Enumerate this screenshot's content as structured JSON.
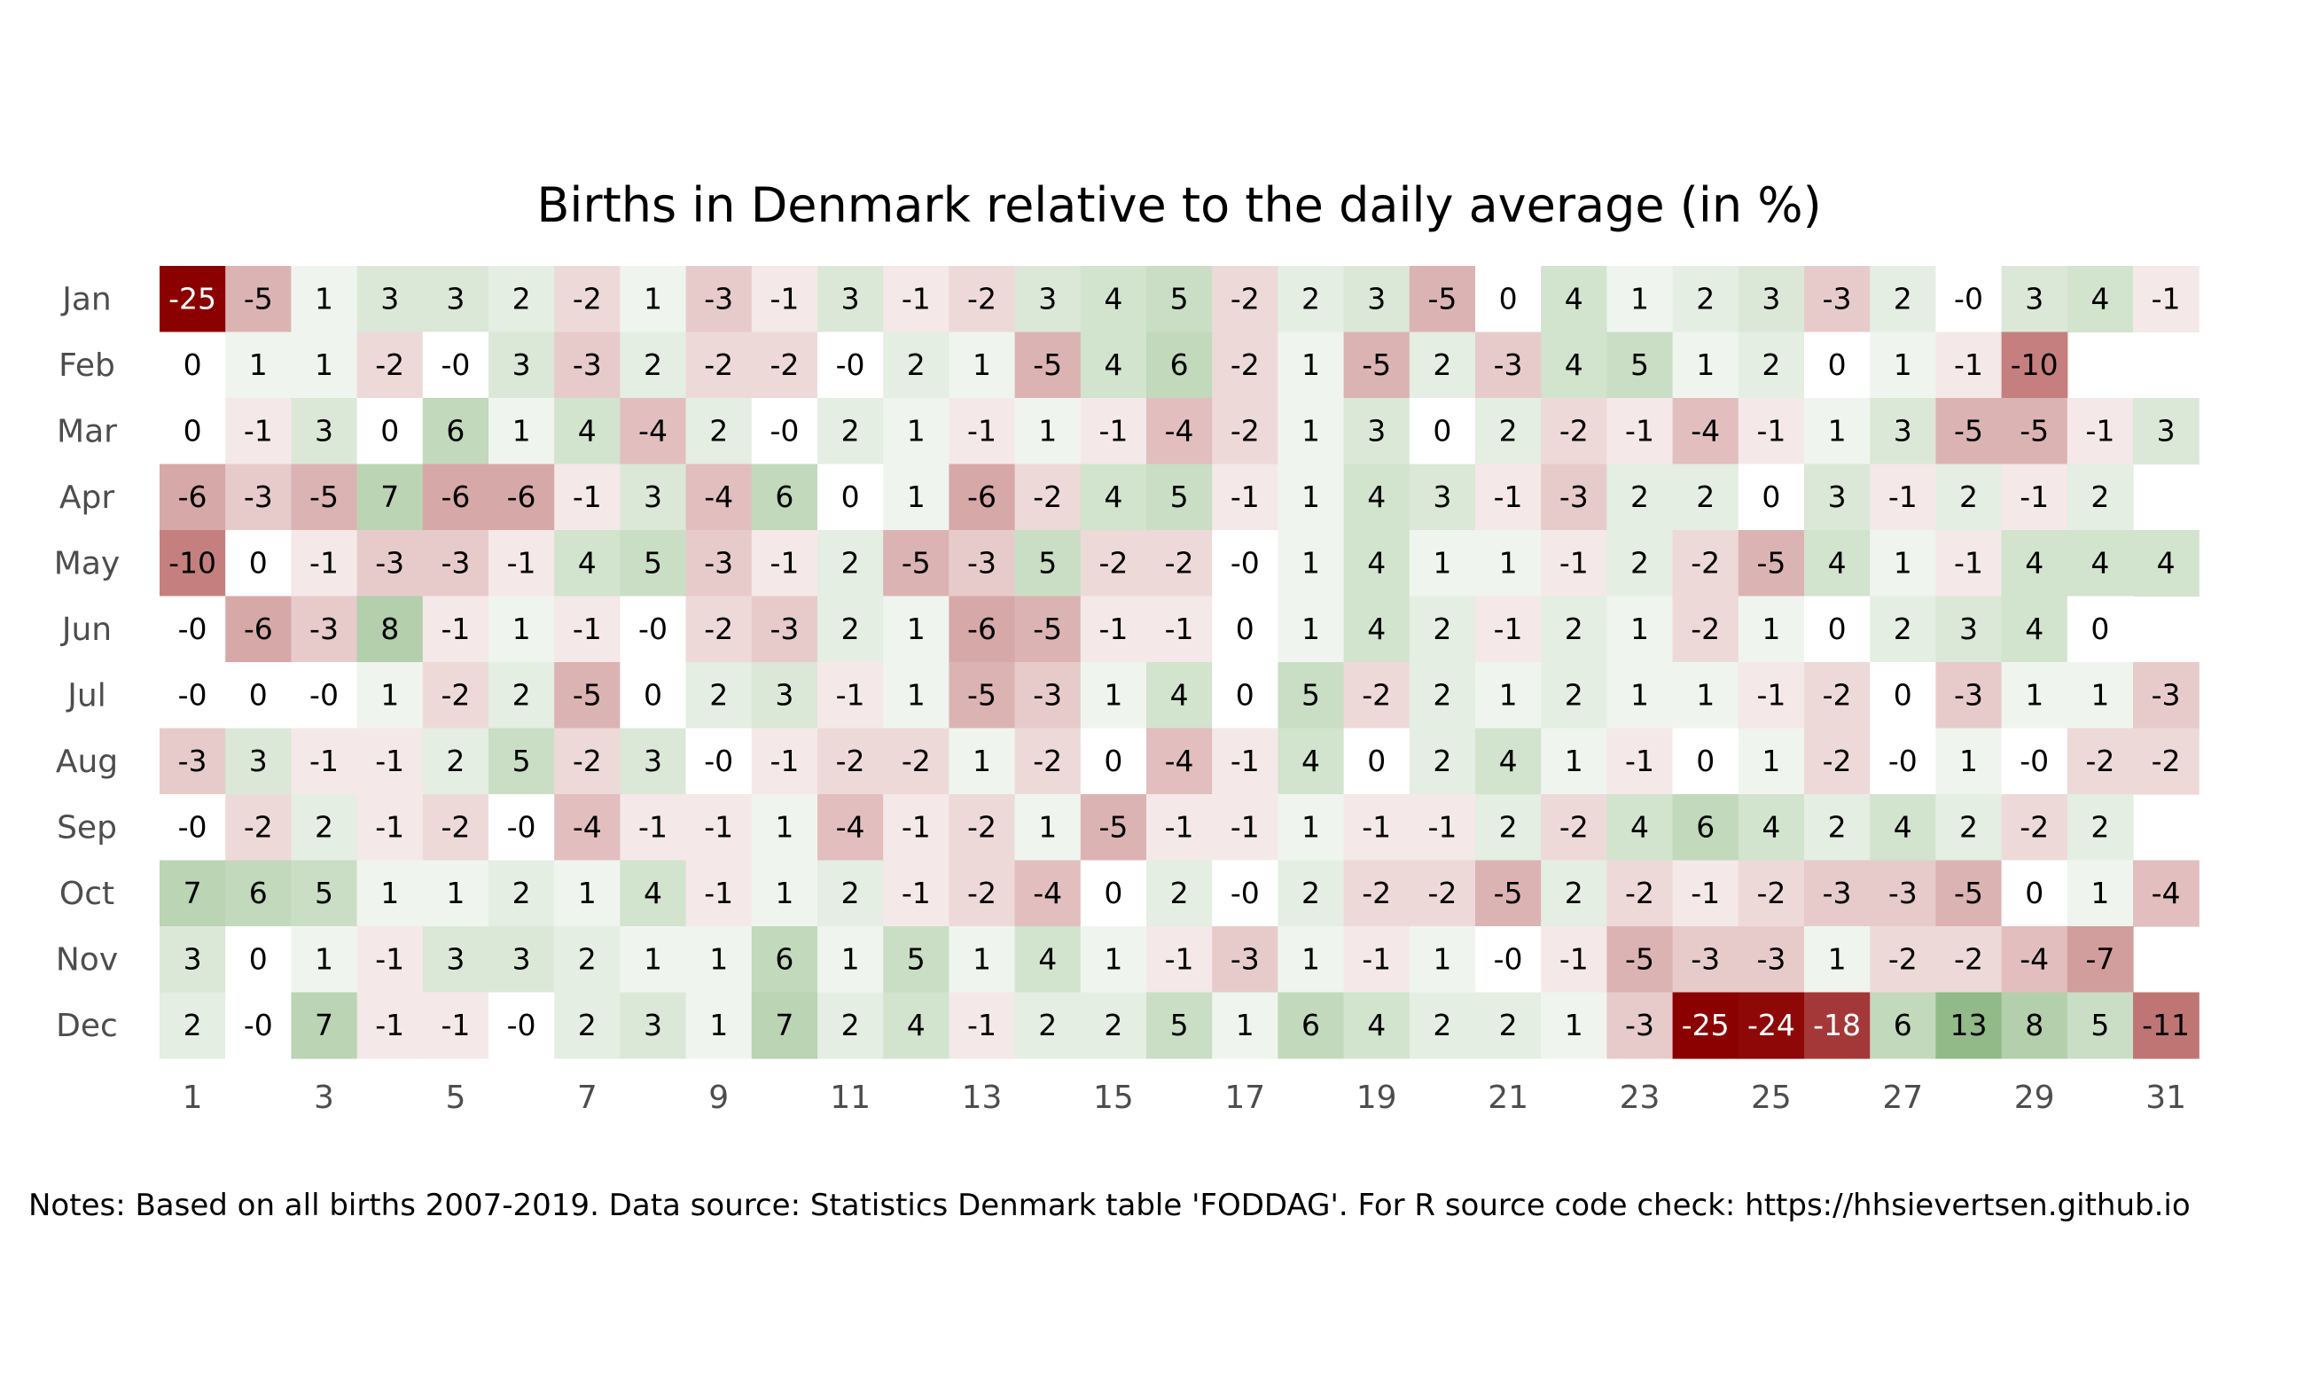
{
  "chart_data": {
    "type": "heatmap",
    "title": "Births in Denmark relative to the daily average (in %)",
    "rows": [
      "Jan",
      "Feb",
      "Mar",
      "Apr",
      "May",
      "Jun",
      "Jul",
      "Aug",
      "Sep",
      "Oct",
      "Nov",
      "Dec"
    ],
    "columns": [
      1,
      2,
      3,
      4,
      5,
      6,
      7,
      8,
      9,
      10,
      11,
      12,
      13,
      14,
      15,
      16,
      17,
      18,
      19,
      20,
      21,
      22,
      23,
      24,
      25,
      26,
      27,
      28,
      29,
      30,
      31
    ],
    "x_tick_labels": [
      "1",
      "3",
      "5",
      "7",
      "9",
      "11",
      "13",
      "15",
      "17",
      "19",
      "21",
      "23",
      "25",
      "27",
      "29",
      "31"
    ],
    "values": [
      [
        "-25",
        "-5",
        "1",
        "3",
        "3",
        "2",
        "-2",
        "1",
        "-3",
        "-1",
        "3",
        "-1",
        "-2",
        "3",
        "4",
        "5",
        "-2",
        "2",
        "3",
        "-5",
        "0",
        "4",
        "1",
        "2",
        "3",
        "-3",
        "2",
        "-0",
        "3",
        "4",
        "-1"
      ],
      [
        "0",
        "1",
        "1",
        "-2",
        "-0",
        "3",
        "-3",
        "2",
        "-2",
        "-2",
        "-0",
        "2",
        "1",
        "-5",
        "4",
        "6",
        "-2",
        "1",
        "-5",
        "2",
        "-3",
        "4",
        "5",
        "1",
        "2",
        "0",
        "1",
        "-1",
        "-10"
      ],
      [
        "0",
        "-1",
        "3",
        "0",
        "6",
        "1",
        "4",
        "-4",
        "2",
        "-0",
        "2",
        "1",
        "-1",
        "1",
        "-1",
        "-4",
        "-2",
        "1",
        "3",
        "0",
        "2",
        "-2",
        "-1",
        "-4",
        "-1",
        "1",
        "3",
        "-5",
        "-5",
        "-1",
        "3"
      ],
      [
        "-6",
        "-3",
        "-5",
        "7",
        "-6",
        "-6",
        "-1",
        "3",
        "-4",
        "6",
        "0",
        "1",
        "-6",
        "-2",
        "4",
        "5",
        "-1",
        "1",
        "4",
        "3",
        "-1",
        "-3",
        "2",
        "2",
        "0",
        "3",
        "-1",
        "2",
        "-1",
        "2"
      ],
      [
        "-10",
        "0",
        "-1",
        "-3",
        "-3",
        "-1",
        "4",
        "5",
        "-3",
        "-1",
        "2",
        "-5",
        "-3",
        "5",
        "-2",
        "-2",
        "-0",
        "1",
        "4",
        "1",
        "1",
        "-1",
        "2",
        "-2",
        "-5",
        "4",
        "1",
        "-1",
        "4",
        "4",
        "4"
      ],
      [
        "-0",
        "-6",
        "-3",
        "8",
        "-1",
        "1",
        "-1",
        "-0",
        "-2",
        "-3",
        "2",
        "1",
        "-6",
        "-5",
        "-1",
        "-1",
        "0",
        "1",
        "4",
        "2",
        "-1",
        "2",
        "1",
        "-2",
        "1",
        "0",
        "2",
        "3",
        "4",
        "0"
      ],
      [
        "-0",
        "0",
        "-0",
        "1",
        "-2",
        "2",
        "-5",
        "0",
        "2",
        "3",
        "-1",
        "1",
        "-5",
        "-3",
        "1",
        "4",
        "0",
        "5",
        "-2",
        "2",
        "1",
        "2",
        "1",
        "1",
        "-1",
        "-2",
        "0",
        "-3",
        "1",
        "1",
        "-3"
      ],
      [
        "-3",
        "3",
        "-1",
        "-1",
        "2",
        "5",
        "-2",
        "3",
        "-0",
        "-1",
        "-2",
        "-2",
        "1",
        "-2",
        "0",
        "-4",
        "-1",
        "4",
        "0",
        "2",
        "4",
        "1",
        "-1",
        "0",
        "1",
        "-2",
        "-0",
        "1",
        "-0",
        "-2",
        "-2"
      ],
      [
        "-0",
        "-2",
        "2",
        "-1",
        "-2",
        "-0",
        "-4",
        "-1",
        "-1",
        "1",
        "-4",
        "-1",
        "-2",
        "1",
        "-5",
        "-1",
        "-1",
        "1",
        "-1",
        "-1",
        "2",
        "-2",
        "4",
        "6",
        "4",
        "2",
        "4",
        "2",
        "-2",
        "2"
      ],
      [
        "7",
        "6",
        "5",
        "1",
        "1",
        "2",
        "1",
        "4",
        "-1",
        "1",
        "2",
        "-1",
        "-2",
        "-4",
        "0",
        "2",
        "-0",
        "2",
        "-2",
        "-2",
        "-5",
        "2",
        "-2",
        "-1",
        "-2",
        "-3",
        "-3",
        "-5",
        "0",
        "1",
        "-4"
      ],
      [
        "3",
        "0",
        "1",
        "-1",
        "3",
        "3",
        "2",
        "1",
        "1",
        "6",
        "1",
        "5",
        "1",
        "4",
        "1",
        "-1",
        "-3",
        "1",
        "-1",
        "1",
        "-0",
        "-1",
        "-5",
        "-3",
        "-3",
        "1",
        "-2",
        "-2",
        "-4",
        "-7"
      ],
      [
        "2",
        "-0",
        "7",
        "-1",
        "-1",
        "-0",
        "2",
        "3",
        "1",
        "7",
        "2",
        "4",
        "-1",
        "2",
        "2",
        "5",
        "1",
        "6",
        "4",
        "2",
        "2",
        "1",
        "-3",
        "-25",
        "-24",
        "-18",
        "6",
        "13",
        "8",
        "5",
        "-11"
      ]
    ],
    "color_scale": {
      "low": "#8b0000",
      "mid": "#ffffff",
      "high": "#4d8f3d",
      "min": -25,
      "max": 25
    },
    "grid": false,
    "legend": "none"
  },
  "notes": "Notes: Based on all births 2007-2019. Data source: Statistics Denmark table 'FODDAG'. For R source code check: https://hhsievertsen.github.io"
}
